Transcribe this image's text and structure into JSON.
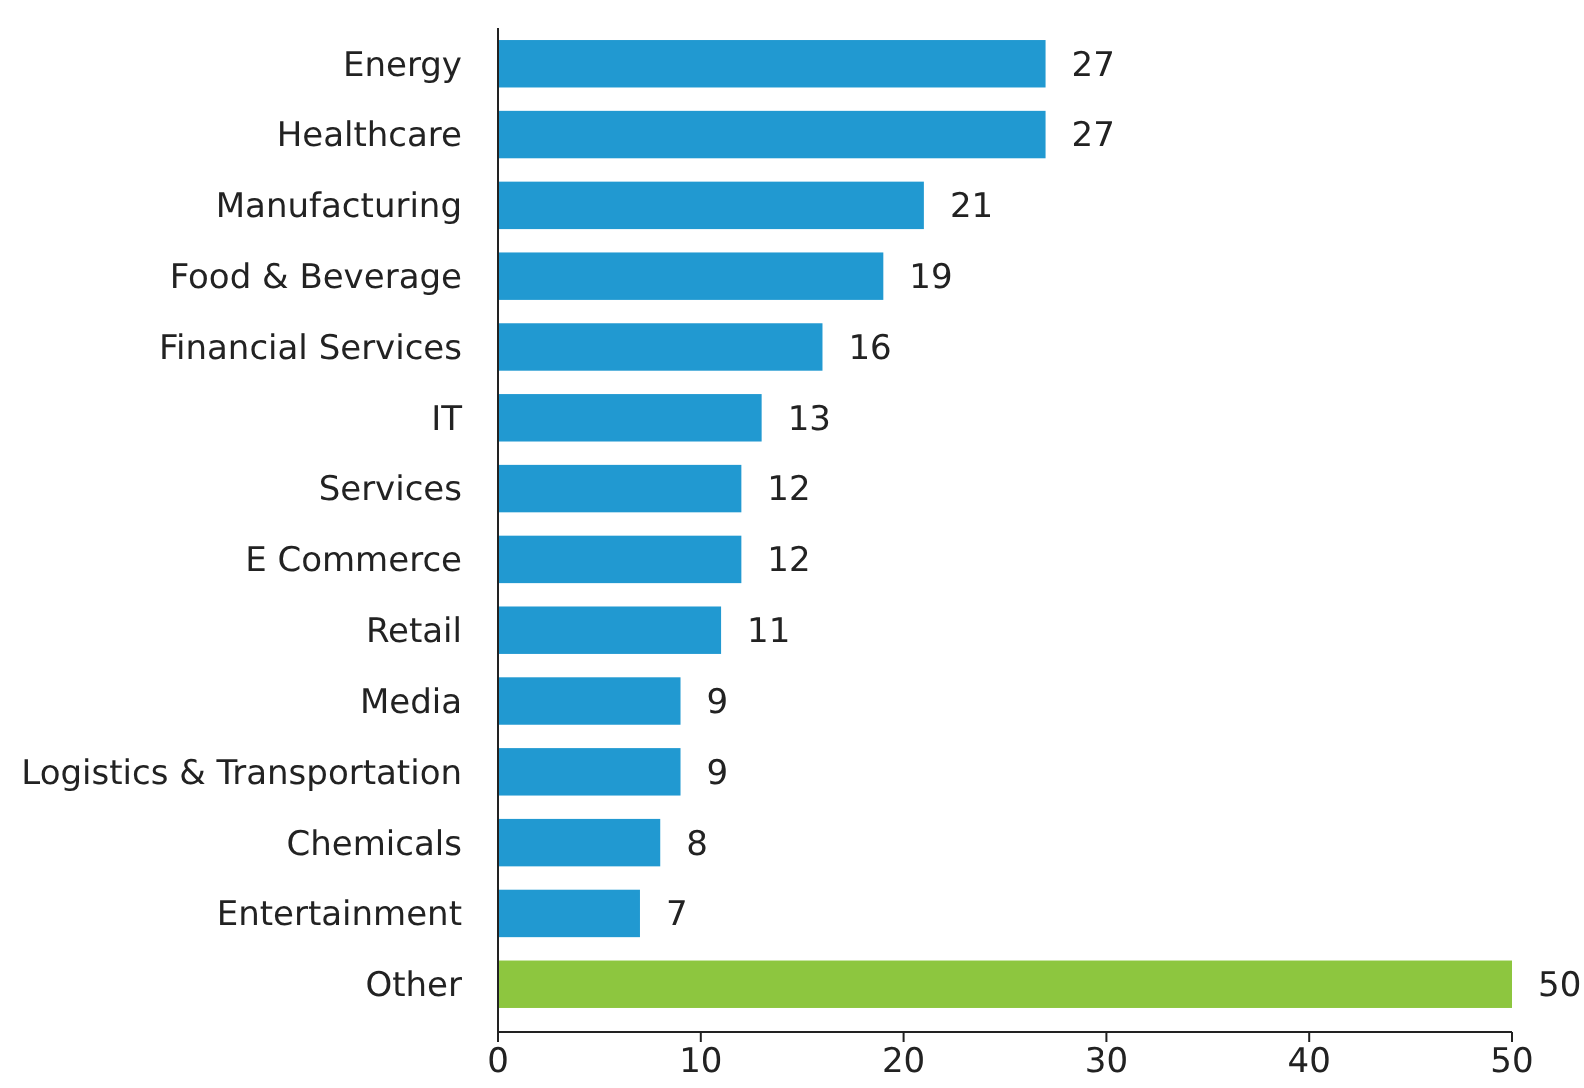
{
  "chart_data": {
    "type": "bar",
    "orientation": "horizontal",
    "categories": [
      "Energy",
      "Healthcare",
      "Manufacturing",
      "Food & Beverage",
      "Financial Services",
      "IT",
      "Services",
      "E Commerce",
      "Retail",
      "Media",
      "Logistics & Transportation",
      "Chemicals",
      "Entertainment",
      "Other"
    ],
    "values": [
      27,
      27,
      21,
      19,
      16,
      13,
      12,
      12,
      11,
      9,
      9,
      8,
      7,
      50
    ],
    "colors": [
      "#2199d1",
      "#2199d1",
      "#2199d1",
      "#2199d1",
      "#2199d1",
      "#2199d1",
      "#2199d1",
      "#2199d1",
      "#2199d1",
      "#2199d1",
      "#2199d1",
      "#2199d1",
      "#2199d1",
      "#8dc63f"
    ],
    "xlim": [
      0,
      50
    ],
    "xticks": [
      0,
      10,
      20,
      30,
      40,
      50
    ],
    "data_labels": true,
    "grid": false
  }
}
